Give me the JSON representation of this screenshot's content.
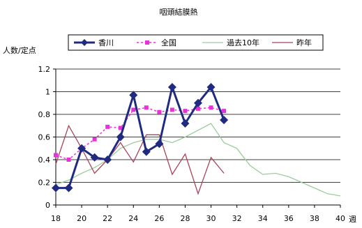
{
  "chart_data": {
    "type": "line",
    "title": "咽頭結膜熱",
    "ylabel": "人数/定点",
    "xlabel": "週",
    "xlim": [
      18,
      40
    ],
    "ylim": [
      0,
      1.2
    ],
    "x_ticks": [
      18,
      20,
      22,
      24,
      26,
      28,
      30,
      32,
      34,
      36,
      38,
      40
    ],
    "y_ticks": [
      0,
      0.2,
      0.4,
      0.6,
      0.8,
      1,
      1.2
    ],
    "grid": true,
    "legend_position": "top",
    "series": [
      {
        "name": "香川",
        "color": "#1f2a80",
        "marker": "diamond",
        "x": [
          18,
          19,
          20,
          21,
          22,
          23,
          24,
          25,
          26,
          27,
          28,
          29,
          30,
          31
        ],
        "values": [
          0.15,
          0.15,
          0.5,
          0.42,
          0.4,
          0.6,
          0.97,
          0.47,
          0.54,
          1.04,
          0.72,
          0.9,
          1.04,
          0.75
        ]
      },
      {
        "name": "全国",
        "color": "#e832d8",
        "marker": "square",
        "x": [
          18,
          19,
          20,
          21,
          22,
          23,
          24,
          25,
          26,
          27,
          28,
          29,
          30,
          31
        ],
        "values": [
          0.44,
          0.4,
          0.5,
          0.58,
          0.69,
          0.68,
          0.84,
          0.86,
          0.82,
          0.84,
          0.83,
          0.85,
          0.86,
          0.83
        ]
      },
      {
        "name": "過去10年",
        "color": "#9ccc9c",
        "marker": "none",
        "x": [
          18,
          19,
          20,
          21,
          22,
          23,
          24,
          25,
          26,
          27,
          28,
          29,
          30,
          31,
          32,
          33,
          34,
          35,
          36,
          37,
          38,
          39,
          40
        ],
        "values": [
          0.18,
          0.22,
          0.28,
          0.33,
          0.4,
          0.5,
          0.55,
          0.58,
          0.58,
          0.55,
          0.6,
          0.66,
          0.72,
          0.55,
          0.5,
          0.35,
          0.27,
          0.28,
          0.25,
          0.2,
          0.15,
          0.1,
          0.08
        ]
      },
      {
        "name": "昨年",
        "color": "#a8445a",
        "marker": "none",
        "x": [
          18,
          19,
          20,
          21,
          22,
          23,
          24,
          25,
          26,
          27,
          28,
          29,
          30,
          31
        ],
        "values": [
          0.36,
          0.7,
          0.5,
          0.28,
          0.4,
          0.55,
          0.38,
          0.62,
          0.62,
          0.27,
          0.45,
          0.1,
          0.42,
          0.28
        ]
      }
    ]
  }
}
